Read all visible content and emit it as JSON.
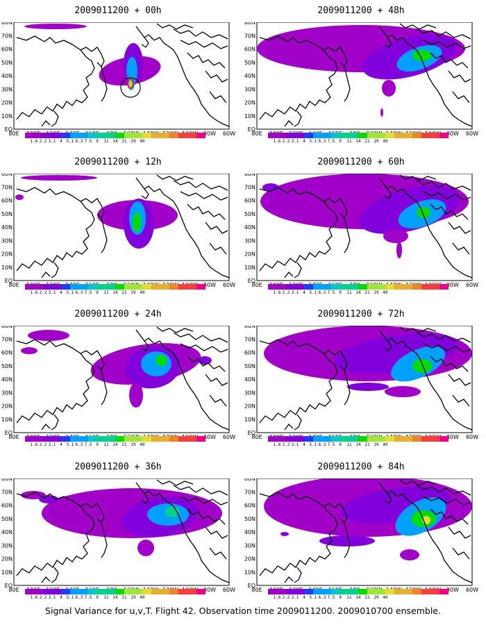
{
  "panels": [
    {
      "title": "2009011200 + 00h",
      "stage": 0,
      "circle": true
    },
    {
      "title": "2009011200 + 12h",
      "stage": 1,
      "circle": false
    },
    {
      "title": "2009011200 + 24h",
      "stage": 2,
      "circle": false
    },
    {
      "title": "2009011200 + 36h",
      "stage": 3,
      "circle": false
    },
    {
      "title": "2009011200 + 48h",
      "stage": 4,
      "circle": false
    },
    {
      "title": "2009011200 + 60h",
      "stage": 5,
      "circle": false
    },
    {
      "title": "2009011200 + 72h",
      "stage": 6,
      "circle": false
    },
    {
      "title": "2009011200 + 84h",
      "stage": 7,
      "circle": false
    }
  ],
  "lat_labels": [
    "80N",
    "70N",
    "60N",
    "50N",
    "40N",
    "30N",
    "20N",
    "10N",
    "EQ"
  ],
  "lon_labels": [
    "80E",
    "100E",
    "120E",
    "140E",
    "160E",
    "180",
    "160W",
    "140W",
    "120W",
    "100W",
    "80W",
    "60W"
  ],
  "colorbar": {
    "labels": [
      "1.6",
      "2.2",
      "3.1",
      "4",
      "5.1",
      "6.3",
      "7.5",
      "9",
      "11",
      "14",
      "21",
      "29",
      "40"
    ],
    "colors": [
      "#a000c8",
      "#8200dc",
      "#1e3cff",
      "#00a0ff",
      "#00c8c8",
      "#00d28c",
      "#00dc00",
      "#a0e632",
      "#e6dc32",
      "#e6af2d",
      "#f08228",
      "#fa3c3c",
      "#f00082"
    ]
  },
  "caption": "Signal Variance for u,v,T. Flight 42. Observation time 2009011200. 2009010700 ensemble."
}
